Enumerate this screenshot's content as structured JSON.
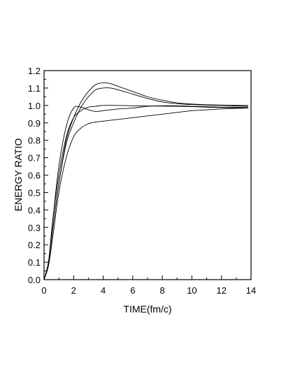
{
  "chart_data": {
    "type": "line",
    "title": "",
    "xlabel": "TIME(fm/c)",
    "ylabel": "ENERGY  RATIO",
    "xlim": [
      0,
      14
    ],
    "ylim": [
      0.0,
      1.2
    ],
    "x_ticks": [
      "0",
      "2",
      "4",
      "6",
      "8",
      "10",
      "12",
      "14"
    ],
    "y_ticks": [
      "0.0",
      "0.1",
      "0.2",
      "0.3",
      "0.4",
      "0.5",
      "0.6",
      "0.7",
      "0.8",
      "0.9",
      "1.0",
      "1.1",
      "1.2"
    ],
    "grid": false,
    "legend": "none",
    "series": [
      {
        "points": [
          [
            0,
            0
          ],
          [
            0.3,
            0.1
          ],
          [
            0.6,
            0.3
          ],
          [
            1.0,
            0.55
          ],
          [
            1.5,
            0.8
          ],
          [
            2.0,
            0.93
          ],
          [
            2.5,
            1.02
          ],
          [
            3.0,
            1.08
          ],
          [
            3.5,
            1.12
          ],
          [
            4.0,
            1.13
          ],
          [
            4.5,
            1.125
          ],
          [
            5.0,
            1.11
          ],
          [
            6.0,
            1.08
          ],
          [
            7.0,
            1.05
          ],
          [
            8.0,
            1.03
          ],
          [
            9.0,
            1.015
          ],
          [
            10.0,
            1.008
          ],
          [
            11.0,
            1.004
          ],
          [
            12.0,
            1.002
          ],
          [
            13.8,
            1.0
          ]
        ]
      },
      {
        "points": [
          [
            0,
            0
          ],
          [
            0.3,
            0.1
          ],
          [
            0.6,
            0.3
          ],
          [
            1.0,
            0.55
          ],
          [
            1.5,
            0.78
          ],
          [
            2.0,
            0.9
          ],
          [
            2.5,
            0.99
          ],
          [
            3.0,
            1.05
          ],
          [
            3.5,
            1.09
          ],
          [
            4.0,
            1.1
          ],
          [
            4.5,
            1.1
          ],
          [
            5.0,
            1.09
          ],
          [
            6.0,
            1.065
          ],
          [
            7.0,
            1.04
          ],
          [
            8.0,
            1.02
          ],
          [
            9.0,
            1.01
          ],
          [
            10.0,
            1.005
          ],
          [
            11.0,
            1.002
          ],
          [
            12.0,
            1.0
          ],
          [
            13.8,
            0.995
          ]
        ]
      },
      {
        "points": [
          [
            0,
            0
          ],
          [
            0.3,
            0.1
          ],
          [
            0.6,
            0.35
          ],
          [
            1.0,
            0.65
          ],
          [
            1.5,
            0.88
          ],
          [
            2.0,
            0.985
          ],
          [
            2.5,
            0.99
          ],
          [
            3.0,
            0.975
          ],
          [
            3.5,
            0.965
          ],
          [
            4.0,
            0.97
          ],
          [
            4.5,
            0.975
          ],
          [
            5.0,
            0.98
          ],
          [
            6.0,
            0.985
          ],
          [
            7.0,
            0.995
          ],
          [
            8.0,
            0.998
          ],
          [
            9.0,
            0.998
          ],
          [
            10.0,
            0.995
          ],
          [
            11.0,
            0.993
          ],
          [
            12.0,
            0.99
          ],
          [
            13.8,
            0.99
          ]
        ]
      },
      {
        "points": [
          [
            0,
            0
          ],
          [
            0.3,
            0.1
          ],
          [
            0.6,
            0.35
          ],
          [
            1.0,
            0.6
          ],
          [
            1.5,
            0.82
          ],
          [
            2.0,
            0.93
          ],
          [
            2.5,
            0.97
          ],
          [
            3.0,
            0.99
          ],
          [
            3.5,
            0.995
          ],
          [
            4.0,
            1.0
          ],
          [
            5.0,
            1.0
          ],
          [
            6.0,
            0.998
          ],
          [
            7.0,
            0.997
          ],
          [
            8.0,
            0.996
          ],
          [
            9.0,
            0.995
          ],
          [
            10.0,
            0.993
          ],
          [
            11.0,
            0.99
          ],
          [
            12.0,
            0.988
          ],
          [
            13.8,
            0.985
          ]
        ]
      },
      {
        "points": [
          [
            0,
            0
          ],
          [
            0.3,
            0.08
          ],
          [
            0.6,
            0.25
          ],
          [
            1.0,
            0.5
          ],
          [
            1.5,
            0.7
          ],
          [
            2.0,
            0.82
          ],
          [
            2.5,
            0.87
          ],
          [
            3.0,
            0.895
          ],
          [
            3.5,
            0.905
          ],
          [
            4.0,
            0.91
          ],
          [
            5.0,
            0.92
          ],
          [
            6.0,
            0.93
          ],
          [
            7.0,
            0.94
          ],
          [
            8.0,
            0.95
          ],
          [
            9.0,
            0.96
          ],
          [
            10.0,
            0.97
          ],
          [
            11.0,
            0.975
          ],
          [
            12.0,
            0.98
          ],
          [
            13.8,
            0.985
          ]
        ]
      }
    ]
  }
}
